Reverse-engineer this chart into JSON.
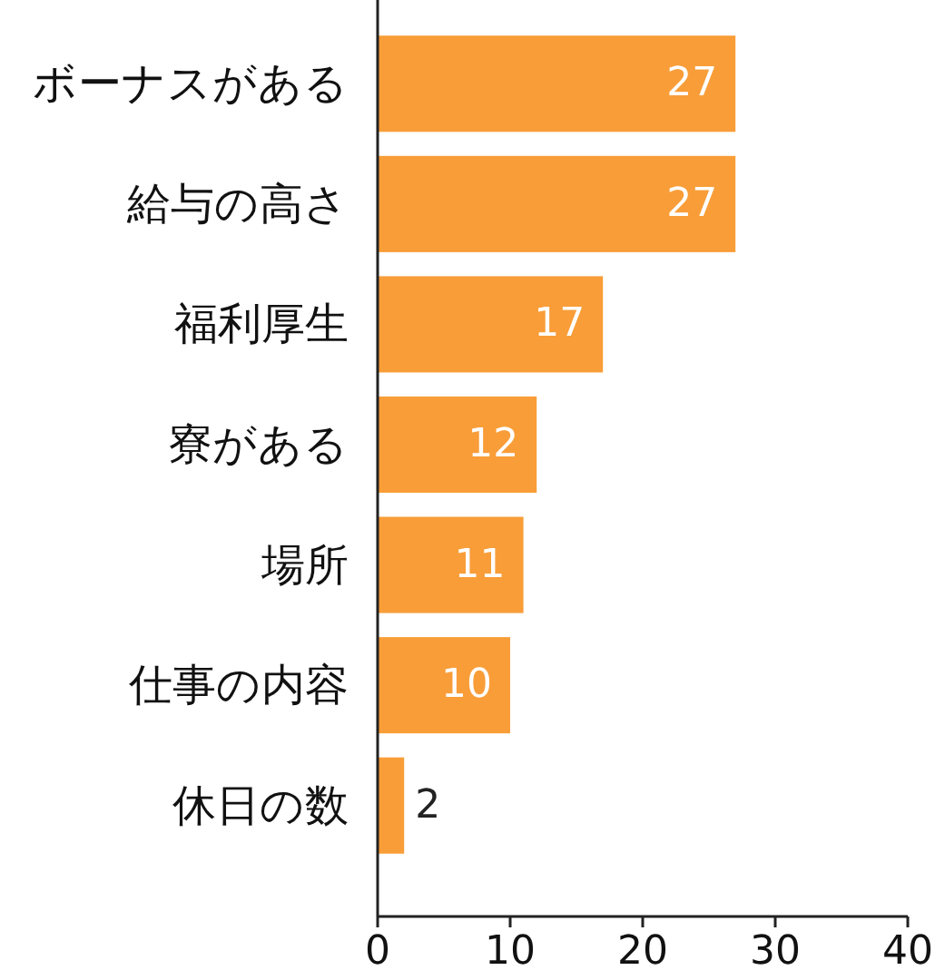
{
  "chart_data": {
    "type": "bar",
    "orientation": "horizontal",
    "categories": [
      "ボーナスがある",
      "給与の高さ",
      "福利厚生",
      "寮がある",
      "場所",
      "仕事の内容",
      "休日の数"
    ],
    "values": [
      27,
      27,
      17,
      12,
      11,
      10,
      2
    ],
    "color": "#f99d38",
    "xlim": [
      0,
      40
    ],
    "xticks": [
      0,
      10,
      20,
      30,
      40
    ],
    "data_labels": true,
    "grid": false
  }
}
